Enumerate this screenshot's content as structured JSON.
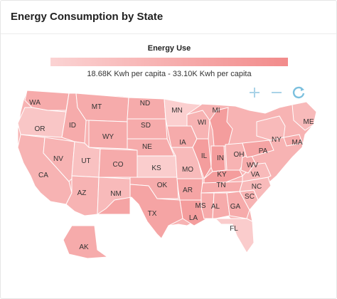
{
  "title": "Energy Consumption by State",
  "legend": {
    "title": "Energy Use",
    "range": "18.68K Kwh per capita - 33.10K Kwh per capita",
    "color_low": "#fbd3d3",
    "color_high": "#f28b8b"
  },
  "controls": [
    {
      "name": "zoom-in",
      "label": "+",
      "icon": "plus-icon"
    },
    {
      "name": "zoom-out",
      "label": "−",
      "icon": "minus-icon"
    },
    {
      "name": "reset",
      "label": "⟳",
      "icon": "refresh-icon"
    }
  ],
  "states": [
    {
      "abbr": "WA",
      "level": 0.55
    },
    {
      "abbr": "OR",
      "level": 0.18
    },
    {
      "abbr": "CA",
      "level": 0.45
    },
    {
      "abbr": "NV",
      "level": 0.45
    },
    {
      "abbr": "ID",
      "level": 0.55
    },
    {
      "abbr": "MT",
      "level": 0.55
    },
    {
      "abbr": "WY",
      "level": 0.55
    },
    {
      "abbr": "UT",
      "level": 0.25
    },
    {
      "abbr": "CO",
      "level": 0.55
    },
    {
      "abbr": "AZ",
      "level": 0.45
    },
    {
      "abbr": "NM",
      "level": 0.35
    },
    {
      "abbr": "ND",
      "level": 0.55
    },
    {
      "abbr": "SD",
      "level": 0.55
    },
    {
      "abbr": "NE",
      "level": 0.55
    },
    {
      "abbr": "KS",
      "level": 0.08
    },
    {
      "abbr": "OK",
      "level": 0.55
    },
    {
      "abbr": "TX",
      "level": 0.65
    },
    {
      "abbr": "MN",
      "level": 0.05
    },
    {
      "abbr": "IA",
      "level": 0.55
    },
    {
      "abbr": "MO",
      "level": 0.35
    },
    {
      "abbr": "AR",
      "level": 0.65
    },
    {
      "abbr": "LA",
      "level": 0.75
    },
    {
      "abbr": "WI",
      "level": 0.45
    },
    {
      "abbr": "IL",
      "level": 0.75
    },
    {
      "abbr": "MI",
      "level": 0.75
    },
    {
      "abbr": "IN",
      "level": 0.75
    },
    {
      "abbr": "OH",
      "level": 0.45
    },
    {
      "abbr": "KY",
      "level": 0.75
    },
    {
      "abbr": "TN",
      "level": 0.55
    },
    {
      "abbr": "MS",
      "level": 0.55
    },
    {
      "abbr": "AL",
      "level": 0.55
    },
    {
      "abbr": "GA",
      "level": 0.55
    },
    {
      "abbr": "FL",
      "level": 0.1
    },
    {
      "abbr": "SC",
      "level": 0.45
    },
    {
      "abbr": "NC",
      "level": 0.35
    },
    {
      "abbr": "VA",
      "level": 0.35
    },
    {
      "abbr": "WV",
      "level": 0.55
    },
    {
      "abbr": "PA",
      "level": 0.65
    },
    {
      "abbr": "NY",
      "level": 0.35
    },
    {
      "abbr": "MA",
      "level": 0.55
    },
    {
      "abbr": "ME",
      "level": 0.35
    },
    {
      "abbr": "AK",
      "level": 0.55
    }
  ]
}
